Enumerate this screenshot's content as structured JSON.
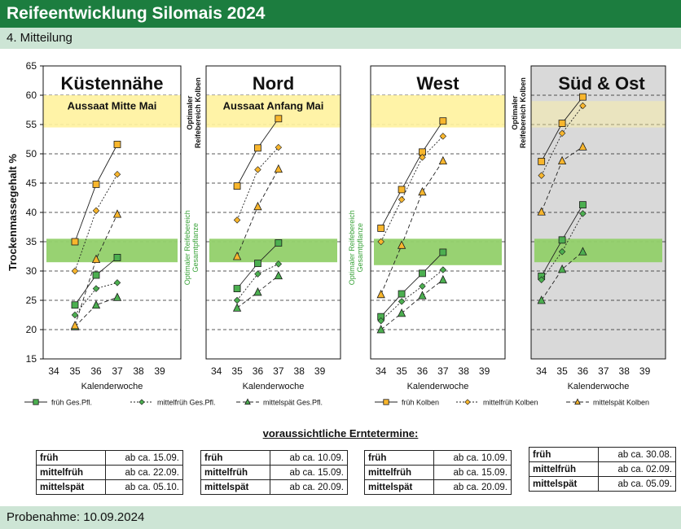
{
  "header": {
    "title": "Reifeentwicklung Silomais 2024",
    "subtitle": "4. Mitteilung"
  },
  "footer": {
    "sampling": "Probenahme: 10.09.2024"
  },
  "axes": {
    "ylabel": "Trockenmassegehalt %",
    "xlabel": "Kalenderwoche",
    "yticks": [
      "65",
      "60",
      "55",
      "50",
      "45",
      "40",
      "35",
      "30",
      "25",
      "20",
      "15"
    ],
    "xticks": [
      "34",
      "35",
      "36",
      "37",
      "38",
      "39"
    ]
  },
  "band_labels": {
    "kolben_line1": "Optimaler",
    "kolben_line2": "Reifebereich Kolben",
    "gesamt_line1": "Optimaler Reifebereich",
    "gesamt_line2": "Gesamtpflanze"
  },
  "colors": {
    "green": "#4caf50",
    "orange": "#f8b62d",
    "yellow_band": "#fff2a0",
    "green_band": "#92d06a",
    "panel_gray": "#d9d9d9"
  },
  "legend": [
    {
      "label": "früh Ges.Pfl.",
      "icon": "square-marker-icon",
      "color": "#4caf50",
      "dash": "solid"
    },
    {
      "label": "mittelfrüh Ges.Pfl.",
      "icon": "diamond-marker-icon",
      "color": "#4caf50",
      "dash": "dotted"
    },
    {
      "label": "mittelspät Ges.Pfl.",
      "icon": "triangle-marker-icon",
      "color": "#4caf50",
      "dash": "dashed"
    },
    {
      "label": "früh Kolben",
      "icon": "square-marker-icon",
      "color": "#f8b62d",
      "dash": "solid"
    },
    {
      "label": "mittelfrüh Kolben",
      "icon": "diamond-marker-icon",
      "color": "#f8b62d",
      "dash": "dotted"
    },
    {
      "label": "mittelspät Kolben",
      "icon": "triangle-marker-icon",
      "color": "#f8b62d",
      "dash": "dashed"
    }
  ],
  "harvest": {
    "title": "voraussichtliche Erntetermine:",
    "tables": [
      {
        "rows": [
          {
            "label": "früh",
            "date": "ab ca. 15.09."
          },
          {
            "label": "mittelfrüh",
            "date": "ab ca. 22.09."
          },
          {
            "label": "mittelspät",
            "date": "ab ca. 05.10."
          }
        ]
      },
      {
        "rows": [
          {
            "label": "früh",
            "date": "ab ca. 10.09."
          },
          {
            "label": "mittelfrüh",
            "date": "ab ca. 15.09."
          },
          {
            "label": "mittelspät",
            "date": "ab ca. 20.09."
          }
        ]
      },
      {
        "rows": [
          {
            "label": "früh",
            "date": "ab ca. 10.09."
          },
          {
            "label": "mittelfrüh",
            "date": "ab ca. 15.09."
          },
          {
            "label": "mittelspät",
            "date": "ab ca. 20.09."
          }
        ]
      },
      {
        "rows": [
          {
            "label": "früh",
            "date": "ab ca. 30.08."
          },
          {
            "label": "mittelfrüh",
            "date": "ab ca. 02.09."
          },
          {
            "label": "mittelspät",
            "date": "ab ca. 05.09."
          }
        ]
      }
    ]
  },
  "chart_data": [
    {
      "type": "line",
      "title": "Küstennähe",
      "annotation": "Aussaat Mitte Mai",
      "gray_background": false,
      "xlabel": "Kalenderwoche",
      "ylabel": "Trockenmassegehalt %",
      "xlim": [
        33.5,
        40
      ],
      "ylim": [
        15,
        65
      ],
      "kolben_band": [
        54.5,
        60
      ],
      "gesamt_band": [
        31.5,
        35.5
      ],
      "series": [
        {
          "name": "früh Ges.Pfl.",
          "x": [
            35,
            36,
            37
          ],
          "y": [
            24.2,
            29.3,
            32.3
          ]
        },
        {
          "name": "mittelfrüh Ges.Pfl.",
          "x": [
            35,
            36,
            37
          ],
          "y": [
            22.5,
            27.0,
            28.0
          ]
        },
        {
          "name": "mittelspät Ges.Pfl.",
          "x": [
            35,
            36,
            37
          ],
          "y": [
            20.5,
            24.2,
            25.5
          ]
        },
        {
          "name": "früh Kolben",
          "x": [
            35,
            36,
            37
          ],
          "y": [
            35.0,
            44.8,
            51.6
          ]
        },
        {
          "name": "mittelfrüh Kolben",
          "x": [
            35,
            36,
            37
          ],
          "y": [
            30.0,
            40.3,
            46.5
          ]
        },
        {
          "name": "mittelspät Kolben",
          "x": [
            35,
            36,
            37
          ],
          "y": [
            20.7,
            32.0,
            39.7
          ]
        }
      ]
    },
    {
      "type": "line",
      "title": "Nord",
      "annotation": "Aussaat Anfang Mai",
      "gray_background": false,
      "xlabel": "Kalenderwoche",
      "ylabel": "Trockenmassegehalt %",
      "xlim": [
        33.5,
        40
      ],
      "ylim": [
        15,
        65
      ],
      "kolben_band": [
        54.5,
        60
      ],
      "gesamt_band": [
        31.5,
        35.5
      ],
      "series": [
        {
          "name": "früh Ges.Pfl.",
          "x": [
            35,
            36,
            37
          ],
          "y": [
            27.0,
            31.3,
            34.8
          ]
        },
        {
          "name": "mittelfrüh Ges.Pfl.",
          "x": [
            35,
            36,
            37
          ],
          "y": [
            25.0,
            29.5,
            31.2
          ]
        },
        {
          "name": "mittelspät Ges.Pfl.",
          "x": [
            35,
            36,
            37
          ],
          "y": [
            23.7,
            26.4,
            29.2
          ]
        },
        {
          "name": "früh Kolben",
          "x": [
            35,
            36,
            37
          ],
          "y": [
            44.5,
            51.0,
            56.0
          ]
        },
        {
          "name": "mittelfrüh Kolben",
          "x": [
            35,
            36,
            37
          ],
          "y": [
            38.7,
            47.3,
            51.1
          ]
        },
        {
          "name": "mittelspät Kolben",
          "x": [
            35,
            36,
            37
          ],
          "y": [
            32.5,
            41.0,
            47.4
          ]
        }
      ]
    },
    {
      "type": "line",
      "title": "West",
      "annotation": "",
      "gray_background": false,
      "xlabel": "Kalenderwoche",
      "ylabel": "Trockenmassegehalt %",
      "xlim": [
        33.5,
        40
      ],
      "ylim": [
        15,
        65
      ],
      "kolben_band": [
        54.5,
        60
      ],
      "gesamt_band": [
        31.0,
        35.5
      ],
      "series": [
        {
          "name": "früh Ges.Pfl.",
          "x": [
            34,
            35,
            36,
            37
          ],
          "y": [
            22.2,
            26.1,
            29.6,
            33.2
          ]
        },
        {
          "name": "mittelfrüh Ges.Pfl.",
          "x": [
            34,
            35,
            36,
            37
          ],
          "y": [
            21.5,
            24.8,
            27.4,
            30.2
          ]
        },
        {
          "name": "mittelspät Ges.Pfl.",
          "x": [
            34,
            35,
            36,
            37
          ],
          "y": [
            20.0,
            22.8,
            25.8,
            28.5
          ]
        },
        {
          "name": "früh Kolben",
          "x": [
            34,
            35,
            36,
            37
          ],
          "y": [
            37.3,
            43.9,
            50.3,
            55.6
          ]
        },
        {
          "name": "mittelfrüh Kolben",
          "x": [
            34,
            35,
            36,
            37
          ],
          "y": [
            35.0,
            42.2,
            49.4,
            53.0
          ]
        },
        {
          "name": "mittelspät Kolben",
          "x": [
            34,
            35,
            36,
            37
          ],
          "y": [
            26.0,
            34.4,
            43.5,
            48.8
          ]
        }
      ]
    },
    {
      "type": "line",
      "title": "Süd & Ost",
      "annotation": "",
      "gray_background": true,
      "xlabel": "Kalenderwoche",
      "ylabel": "Trockenmassegehalt %",
      "xlim": [
        33.5,
        40
      ],
      "ylim": [
        15,
        65
      ],
      "kolben_band": [
        54.5,
        59
      ],
      "gesamt_band": [
        31.5,
        35.5
      ],
      "series": [
        {
          "name": "früh Ges.Pfl.",
          "x": [
            34,
            35,
            36
          ],
          "y": [
            29.1,
            35.3,
            41.3
          ]
        },
        {
          "name": "mittelfrüh Ges.Pfl.",
          "x": [
            34,
            35,
            36
          ],
          "y": [
            28.5,
            33.3,
            39.8
          ]
        },
        {
          "name": "mittelspät Ges.Pfl.",
          "x": [
            34,
            35,
            36
          ],
          "y": [
            25.0,
            30.3,
            33.3
          ]
        },
        {
          "name": "früh Kolben",
          "x": [
            34,
            35,
            36
          ],
          "y": [
            48.7,
            55.2,
            59.7
          ]
        },
        {
          "name": "mittelfrüh Kolben",
          "x": [
            34,
            35,
            36
          ],
          "y": [
            46.3,
            53.5,
            58.2
          ]
        },
        {
          "name": "mittelspät Kolben",
          "x": [
            34,
            35,
            36
          ],
          "y": [
            40.1,
            48.8,
            51.2
          ]
        }
      ]
    }
  ]
}
